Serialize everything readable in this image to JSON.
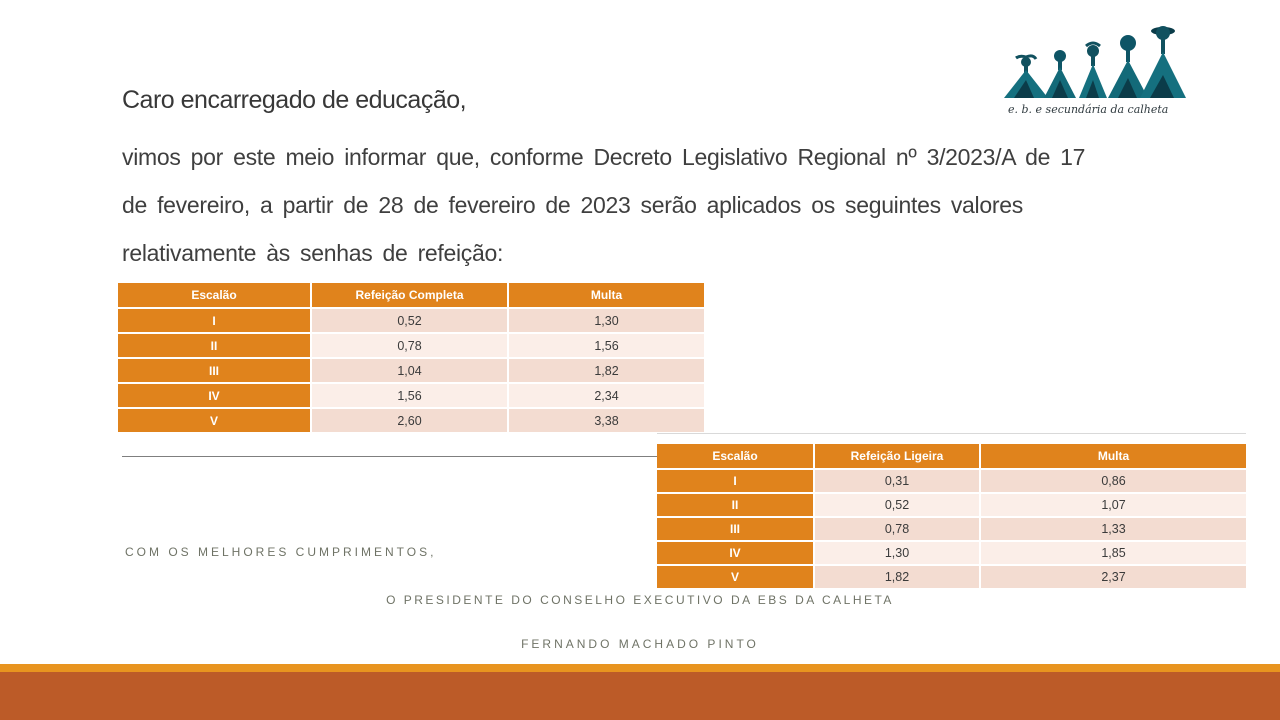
{
  "letter": {
    "greeting": "Caro encarregado de educação,",
    "body_lines": [
      "vimos por este meio informar que, conforme Decreto Legislativo Regional nº 3/2023/A de 17",
      "de fevereiro, a partir de 28 de fevereiro de 2023 serão aplicados os seguintes valores",
      "relativamente às senhas de refeição:"
    ]
  },
  "logo": {
    "caption": "e. b.  e secundária da calheta",
    "description": "five teal watercolor figure silhouettes increasing in size"
  },
  "tables": [
    {
      "name": "refeicao-completa",
      "headers": [
        "Escalão",
        "Refeição Completa",
        "Multa"
      ],
      "rows": [
        [
          "I",
          "0,52",
          "1,30"
        ],
        [
          "II",
          "0,78",
          "1,56"
        ],
        [
          "III",
          "1,04",
          "1,82"
        ],
        [
          "IV",
          "1,56",
          "2,34"
        ],
        [
          "V",
          "2,60",
          "3,38"
        ]
      ]
    },
    {
      "name": "refeicao-ligeira",
      "headers": [
        "Escalão",
        "Refeição Ligeira",
        "Multa"
      ],
      "rows": [
        [
          "I",
          "0,31",
          "0,86"
        ],
        [
          "II",
          "0,52",
          "1,07"
        ],
        [
          "III",
          "0,78",
          "1,33"
        ],
        [
          "IV",
          "1,30",
          "1,85"
        ],
        [
          "V",
          "1,82",
          "2,37"
        ]
      ]
    }
  ],
  "footer": {
    "closing": "COM OS MELHORES CUMPRIMENTOS,",
    "signature_title": "O PRESIDENTE DO CONSELHO EXECUTIVO DA EBS DA CALHETA",
    "signature_name": "FERNANDO MACHADO PINTO"
  },
  "colors": {
    "accent_orange": "#e0831c",
    "bar_orange": "#e8941f",
    "bar_rust": "#bc5b28",
    "band_dark_pink": "#f3dcd1",
    "band_light_pink": "#fbeee8",
    "body_text": "#3f3f3f",
    "footer_text": "#6f7366",
    "logo_teal": "#15707f"
  }
}
